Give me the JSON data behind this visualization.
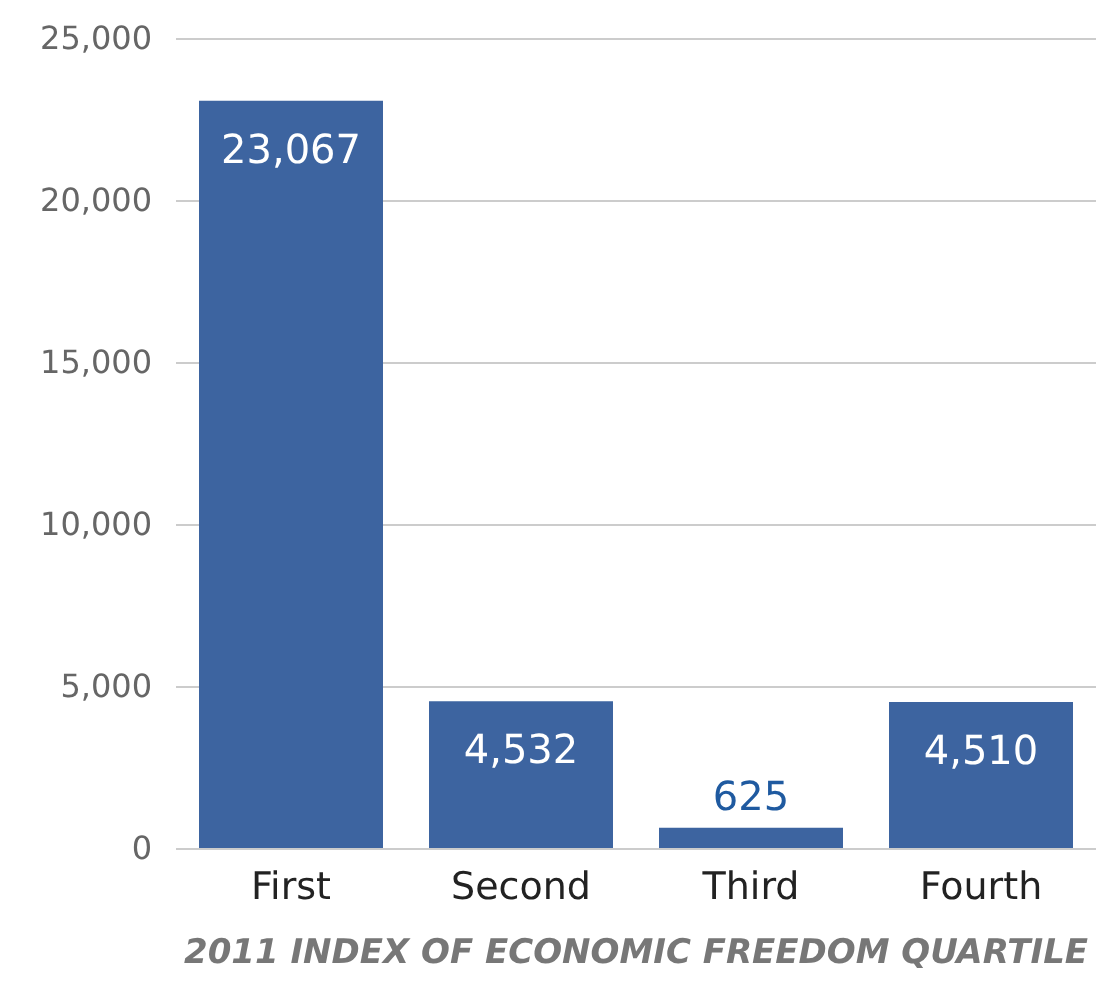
{
  "chart_data": {
    "type": "bar",
    "xlabel": "2011 INDEX OF ECONOMIC FREEDOM QUARTILE",
    "categories": [
      "First",
      "Second",
      "Third",
      "Fourth"
    ],
    "values": [
      23067,
      4532,
      625,
      4510
    ],
    "value_labels": [
      "23,067",
      "4,532",
      "625",
      "4,510"
    ],
    "color": "#3d64a0",
    "ylim": [
      0,
      25000
    ],
    "yticks": [
      0,
      {
        "value": 5000,
        "label": "5,000"
      },
      {
        "value": 10000,
        "label": "10,000"
      },
      {
        "value": 15000,
        "label": "15,000"
      },
      {
        "value": 20000,
        "label": "20,000"
      },
      {
        "value": 25000,
        "label": "25,000"
      }
    ],
    "grid": "y"
  }
}
